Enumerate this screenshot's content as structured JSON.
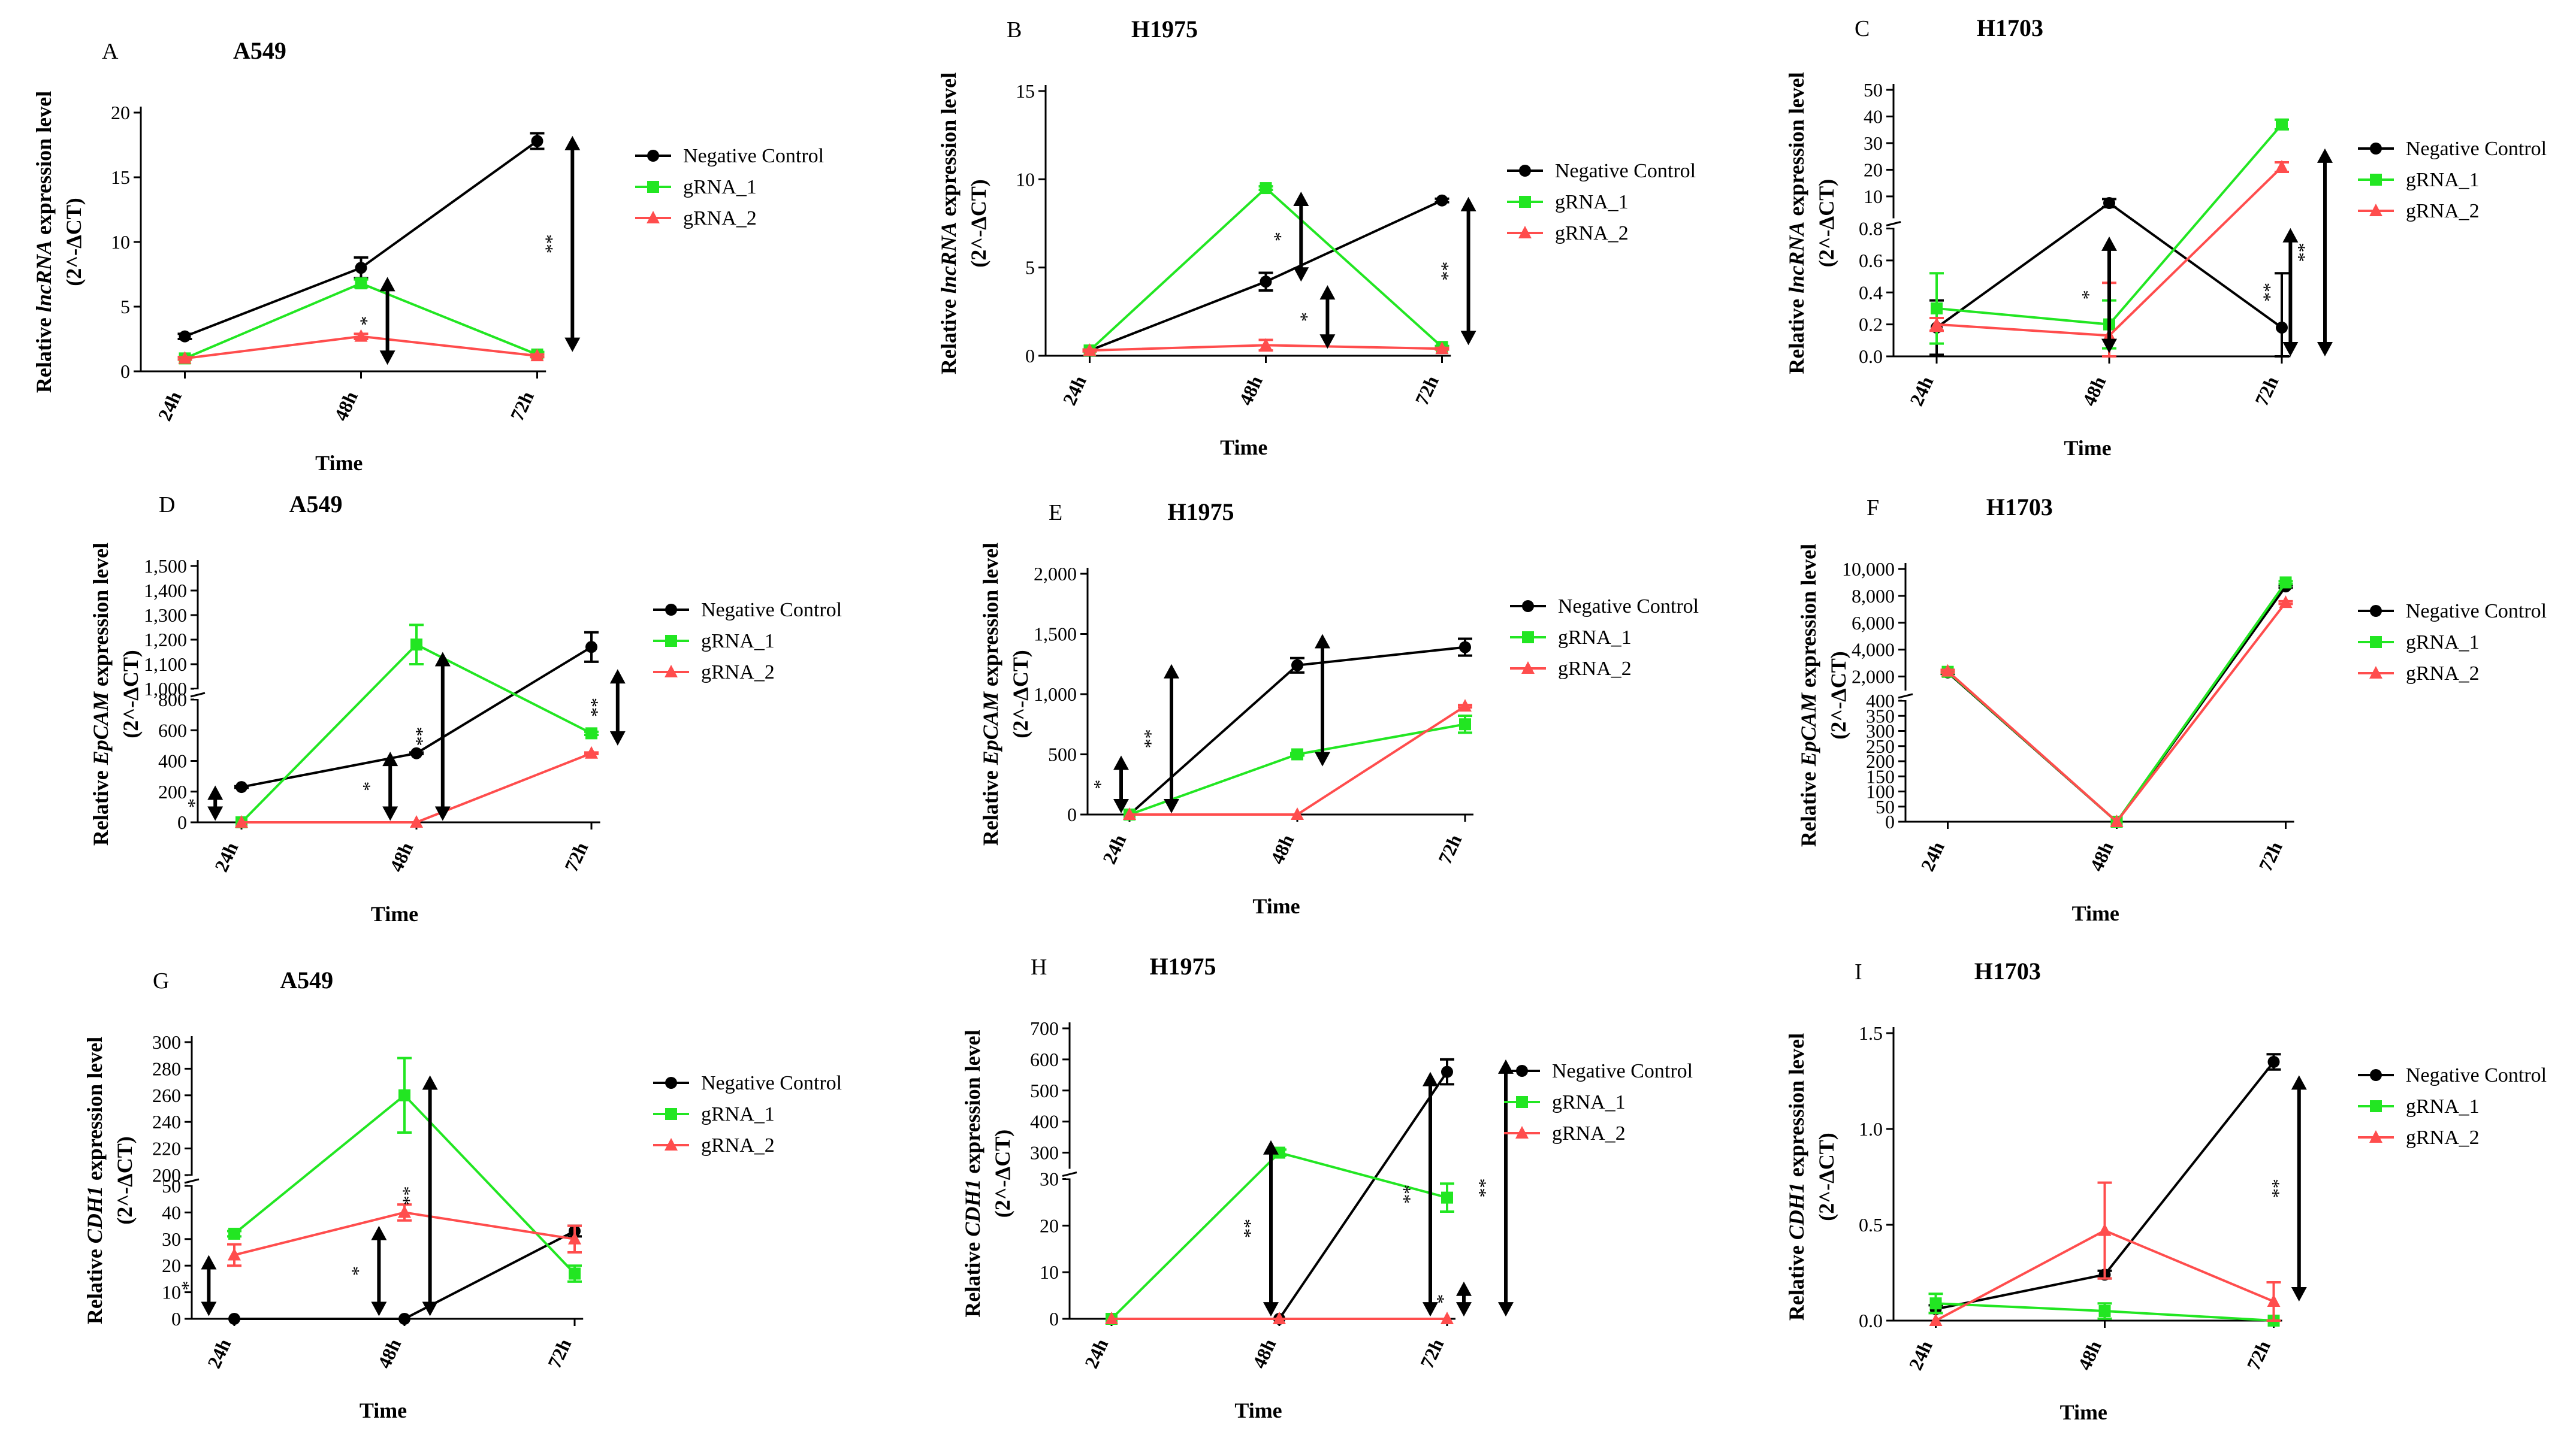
{
  "colors": {
    "negative_control": "#000000",
    "gRNA_1": "#22e622",
    "gRNA_2": "#ff4d4d"
  },
  "chart_data": [
    {
      "letter": "A",
      "type": "line",
      "title": "A549",
      "xlabel": "Time",
      "ylabel_pre": "Relative ",
      "ylabel_italic": "lncRNA",
      "ylabel_post": " expression level",
      "ylabel_formula": "(2^-ΔCT)",
      "categories": [
        "24h",
        "48h",
        "72h"
      ],
      "y_ticks": [
        "0",
        "5",
        "10",
        "15",
        "20"
      ],
      "ylim": [
        0,
        20
      ],
      "series": [
        {
          "name": "Negative Control",
          "values": [
            2.7,
            8.0,
            17.8
          ],
          "errors": [
            0.2,
            0.8,
            0.6
          ]
        },
        {
          "name": "gRNA_1",
          "values": [
            1.0,
            6.8,
            1.3
          ],
          "errors": [
            0.1,
            0.3,
            0.2
          ]
        },
        {
          "name": "gRNA_2",
          "values": [
            1.0,
            2.7,
            1.2
          ],
          "errors": [
            0.1,
            0.2,
            0.1
          ]
        }
      ],
      "annotations": [
        {
          "label": "*",
          "x_pos": 1.15,
          "y_from": 0.5,
          "y_to": 7.3
        },
        {
          "label": "**",
          "x_pos": 2.2,
          "y_from": 1.5,
          "y_to": 18.2
        }
      ]
    },
    {
      "letter": "B",
      "type": "line",
      "title": "H1975",
      "xlabel": "Time",
      "ylabel_pre": "Relative ",
      "ylabel_italic": "lncRNA",
      "ylabel_post": " expression level",
      "ylabel_formula": "(2^-ΔCT)",
      "categories": [
        "24h",
        "48h",
        "72h"
      ],
      "y_ticks": [
        "0",
        "5",
        "10",
        "15"
      ],
      "ylim": [
        0,
        15
      ],
      "series": [
        {
          "name": "Negative Control",
          "values": [
            0.3,
            4.2,
            8.8
          ],
          "errors": [
            0.05,
            0.5,
            0.1
          ]
        },
        {
          "name": "gRNA_1",
          "values": [
            0.3,
            9.5,
            0.5
          ],
          "errors": [
            0.05,
            0.1,
            0.05
          ]
        },
        {
          "name": "gRNA_2",
          "values": [
            0.3,
            0.6,
            0.4
          ],
          "errors": [
            0.05,
            0.3,
            0.05
          ]
        }
      ],
      "annotations": [
        {
          "label": "*",
          "x_pos": 1.2,
          "y_from": 4.2,
          "y_to": 9.3
        },
        {
          "label": "*",
          "x_pos": 1.35,
          "y_from": 0.4,
          "y_to": 4.0
        },
        {
          "label": "**",
          "x_pos": 2.15,
          "y_from": 0.6,
          "y_to": 9.0
        }
      ]
    },
    {
      "letter": "C",
      "type": "line",
      "title": "H1703",
      "broken": true,
      "xlabel": "Time",
      "ylabel_pre": "Relative ",
      "ylabel_italic": "lncRNA",
      "ylabel_post": " expression level",
      "ylabel_formula": "(2^-ΔCT)",
      "categories": [
        "24h",
        "48h",
        "72h"
      ],
      "lower_ticks": [
        "0.0",
        "0.2",
        "0.4",
        "0.6",
        "0.8"
      ],
      "lower_lim": [
        0,
        0.8
      ],
      "upper_ticks": [
        "10",
        "20",
        "30",
        "40",
        "50"
      ],
      "upper_lim": [
        2,
        50
      ],
      "series": [
        {
          "name": "Negative Control",
          "values": [
            0.18,
            7.5,
            0.18
          ],
          "errors": [
            0.17,
            1.5,
            0.34
          ]
        },
        {
          "name": "gRNA_1",
          "values": [
            0.3,
            0.2,
            37.0
          ],
          "errors": [
            0.22,
            0.15,
            1.8
          ]
        },
        {
          "name": "gRNA_2",
          "values": [
            0.2,
            0.13,
            21.0
          ],
          "errors": [
            0.04,
            0.33,
            1.8
          ]
        }
      ],
      "annotations": [
        {
          "label": "*",
          "x_pos": 1.0,
          "y_from": 0.02,
          "y_to": 0.75
        },
        {
          "label": "**",
          "x_pos": 2.05,
          "y_from": 0.0,
          "y_to": 0.85
        },
        {
          "label": "**",
          "x_pos": 2.25,
          "y_from": 0.0,
          "y_to": 28.0
        }
      ]
    },
    {
      "letter": "D",
      "type": "line",
      "title": "A549",
      "broken": true,
      "xlabel": "Time",
      "ylabel_pre": "Relative ",
      "ylabel_italic": "EpCAM",
      "ylabel_post": " expression level",
      "ylabel_formula": "(2^-ΔCT)",
      "categories": [
        "24h",
        "48h",
        "72h"
      ],
      "lower_ticks": [
        "0",
        "200",
        "400",
        "600",
        "800"
      ],
      "lower_lim": [
        0,
        800
      ],
      "upper_ticks": [
        "1,000",
        "1,100",
        "1,200",
        "1,300",
        "1,400",
        "1,500"
      ],
      "upper_lim": [
        1000,
        1500
      ],
      "series": [
        {
          "name": "Negative Control",
          "values": [
            230,
            450,
            1170
          ],
          "errors": [
            5,
            5,
            60
          ]
        },
        {
          "name": "gRNA_1",
          "values": [
            0,
            1180,
            580
          ],
          "errors": [
            0,
            80,
            10
          ]
        },
        {
          "name": "gRNA_2",
          "values": [
            0,
            0,
            450
          ],
          "errors": [
            0,
            0,
            5
          ]
        }
      ],
      "annotations": [
        {
          "label": "*",
          "x_pos": -0.15,
          "y_from": 10,
          "y_to": 240
        },
        {
          "label": "*",
          "x_pos": 0.85,
          "y_from": 10,
          "y_to": 460
        },
        {
          "label": "**",
          "x_pos": 1.15,
          "y_from": 10,
          "y_to": 1150
        },
        {
          "label": "**",
          "x_pos": 2.15,
          "y_from": 500,
          "y_to": 1080
        }
      ]
    },
    {
      "letter": "E",
      "type": "line",
      "title": "H1975",
      "xlabel": "Time",
      "ylabel_pre": "Relative ",
      "ylabel_italic": "EpCAM",
      "ylabel_post": " expression level",
      "ylabel_formula": "(2^-ΔCT)",
      "categories": [
        "24h",
        "48h",
        "72h"
      ],
      "y_ticks": [
        "0",
        "500",
        "1,000",
        "1,500",
        "2,000"
      ],
      "ylim": [
        0,
        2000
      ],
      "series": [
        {
          "name": "Negative Control",
          "values": [
            0,
            1240,
            1390
          ],
          "errors": [
            0,
            60,
            70
          ]
        },
        {
          "name": "gRNA_1",
          "values": [
            0,
            500,
            750
          ],
          "errors": [
            0,
            10,
            70
          ]
        },
        {
          "name": "gRNA_2",
          "values": [
            0,
            0,
            900
          ],
          "errors": [
            0,
            0,
            10
          ]
        }
      ],
      "annotations": [
        {
          "label": "*",
          "x_pos": -0.05,
          "y_from": 10,
          "y_to": 490
        },
        {
          "label": "**",
          "x_pos": 0.25,
          "y_from": 10,
          "y_to": 1250
        },
        {
          "label": "",
          "x_pos": 1.15,
          "y_from": 400,
          "y_to": 1500
        }
      ]
    },
    {
      "letter": "F",
      "type": "line",
      "title": "H1703",
      "broken": true,
      "xlabel": "Time",
      "ylabel_pre": "Relative ",
      "ylabel_italic": "EpCAM",
      "ylabel_post": " expression level",
      "ylabel_formula": "(2^-ΔCT)",
      "categories": [
        "24h",
        "48h",
        "72h"
      ],
      "lower_ticks": [
        "0",
        "50",
        "100",
        "150",
        "200",
        "250",
        "300",
        "350",
        "400"
      ],
      "lower_lim": [
        0,
        400
      ],
      "upper_ticks": [
        "2,000",
        "4,000",
        "6,000",
        "8,000",
        "10,000"
      ],
      "upper_lim": [
        1000,
        10000
      ],
      "series": [
        {
          "name": "Negative Control",
          "values": [
            2300,
            0,
            8700
          ],
          "errors": [
            100,
            0,
            100
          ]
        },
        {
          "name": "gRNA_1",
          "values": [
            2350,
            0,
            9000
          ],
          "errors": [
            100,
            0,
            100
          ]
        },
        {
          "name": "gRNA_2",
          "values": [
            2400,
            0,
            7500
          ],
          "errors": [
            100,
            0,
            100
          ]
        }
      ],
      "annotations": []
    },
    {
      "letter": "G",
      "type": "line",
      "title": "A549",
      "broken": true,
      "xlabel": "Time",
      "ylabel_pre": "Relative ",
      "ylabel_italic": "CDH1",
      "ylabel_post": " expression level",
      "ylabel_formula": "(2^-ΔCT)",
      "categories": [
        "24h",
        "48h",
        "72h"
      ],
      "lower_ticks": [
        "0",
        "10",
        "20",
        "30",
        "40",
        "50"
      ],
      "lower_lim": [
        0,
        50
      ],
      "upper_ticks": [
        "200",
        "220",
        "240",
        "260",
        "280",
        "300"
      ],
      "upper_lim": [
        200,
        300
      ],
      "series": [
        {
          "name": "Negative Control",
          "values": [
            0,
            0,
            33
          ],
          "errors": [
            0,
            0,
            2
          ]
        },
        {
          "name": "gRNA_1",
          "values": [
            32,
            260,
            17
          ],
          "errors": [
            1,
            28,
            3
          ]
        },
        {
          "name": "gRNA_2",
          "values": [
            24,
            40,
            30
          ],
          "errors": [
            4,
            3,
            5
          ]
        }
      ],
      "annotations": [
        {
          "label": "*",
          "x_pos": -0.15,
          "y_from": 1,
          "y_to": 24
        },
        {
          "label": "*",
          "x_pos": 0.85,
          "y_from": 1,
          "y_to": 35
        },
        {
          "label": "**",
          "x_pos": 1.15,
          "y_from": 1,
          "y_to": 275
        }
      ]
    },
    {
      "letter": "H",
      "type": "line",
      "title": "H1975",
      "broken": true,
      "xlabel": "Time",
      "ylabel_pre": "Relative ",
      "ylabel_italic": "CDH1",
      "ylabel_post": " expression level",
      "ylabel_formula": "(2^-ΔCT)",
      "categories": [
        "24h",
        "48h",
        "72h"
      ],
      "lower_ticks": [
        "0",
        "10",
        "20",
        "30"
      ],
      "lower_lim": [
        0,
        30
      ],
      "upper_ticks": [
        "300",
        "400",
        "500",
        "600",
        "700"
      ],
      "upper_lim": [
        250,
        700
      ],
      "series": [
        {
          "name": "Negative Control",
          "values": [
            0,
            0,
            560
          ],
          "errors": [
            0,
            0,
            40
          ]
        },
        {
          "name": "gRNA_1",
          "values": [
            0,
            300,
            26
          ],
          "errors": [
            0,
            10,
            3
          ]
        },
        {
          "name": "gRNA_2",
          "values": [
            0,
            0,
            0
          ],
          "errors": [
            0,
            0,
            0
          ]
        }
      ],
      "annotations": [
        {
          "label": "**",
          "x_pos": 0.95,
          "y_from": 0.5,
          "y_to": 340
        },
        {
          "label": "**",
          "x_pos": 1.9,
          "y_from": 0.5,
          "y_to": 560
        },
        {
          "label": "*",
          "x_pos": 2.1,
          "y_from": 0.5,
          "y_to": 8
        },
        {
          "label": "**",
          "x_pos": 2.35,
          "y_from": 0.5,
          "y_to": 600
        }
      ]
    },
    {
      "letter": "I",
      "type": "line",
      "title": "H1703",
      "xlabel": "Time",
      "ylabel_pre": "Relative ",
      "ylabel_italic": "CDH1",
      "ylabel_post": " expression level",
      "ylabel_formula": "(2^-ΔCT)",
      "categories": [
        "24h",
        "48h",
        "72h"
      ],
      "y_ticks": [
        "0.0",
        "0.5",
        "1.0",
        "1.5"
      ],
      "ylim": [
        0,
        1.5
      ],
      "series": [
        {
          "name": "Negative Control",
          "values": [
            0.06,
            0.24,
            1.35
          ],
          "errors": [
            0.02,
            0.02,
            0.04
          ]
        },
        {
          "name": "gRNA_1",
          "values": [
            0.09,
            0.05,
            0.0
          ],
          "errors": [
            0.05,
            0.04,
            0.0
          ]
        },
        {
          "name": "gRNA_2",
          "values": [
            0.0,
            0.47,
            0.1
          ],
          "errors": [
            0.0,
            0.25,
            0.1
          ]
        }
      ],
      "annotations": [
        {
          "label": "**",
          "x_pos": 2.15,
          "y_from": 0.1,
          "y_to": 1.28
        }
      ]
    }
  ]
}
